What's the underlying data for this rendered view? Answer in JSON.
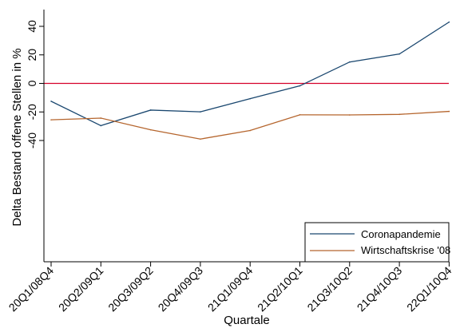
{
  "chart_data": {
    "type": "line",
    "title": "",
    "xlabel": "Quartale",
    "ylabel": "Delta Bestand offene Stellen in %",
    "categories": [
      "20Q1/08Q4",
      "20Q2/09Q1",
      "20Q3/09Q2",
      "20Q4/09Q3",
      "21Q1/09Q4",
      "21Q2/10Q1",
      "21Q3/10Q2",
      "21Q4/10Q3",
      "22Q1/10Q4"
    ],
    "yticks": [
      40,
      20,
      0,
      -20,
      -40
    ],
    "ylim": [
      -40,
      43
    ],
    "series": [
      {
        "name": "Coronapandemie",
        "color": "#1a476f",
        "values": [
          -12.5,
          -29.6,
          -18.7,
          -19.9,
          -10.7,
          -1.7,
          15.0,
          20.6,
          43.0
        ]
      },
      {
        "name": "Wirtschaftskrise '08",
        "color": "#b5652d",
        "values": [
          -25.5,
          -24.3,
          -32.5,
          -39.0,
          -33.0,
          -22.0,
          -22.1,
          -21.7,
          -19.6
        ]
      }
    ],
    "reference_line": {
      "value": 0,
      "color": "#d6002a"
    },
    "legend_position": "bottom-right",
    "grid": false
  }
}
